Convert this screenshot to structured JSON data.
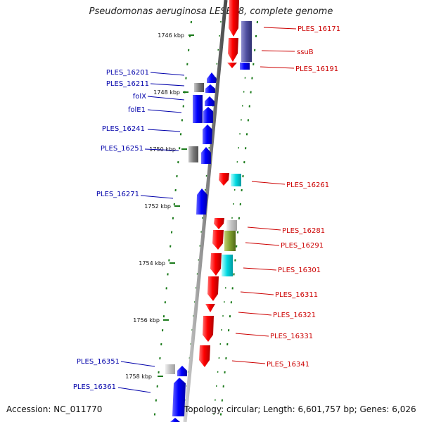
{
  "title": "Pseudomonas aeruginosa LESB58, complete genome",
  "footer": {
    "accession": "Accession: NC_011770",
    "topology": "Topology: circular; Length: 6,601,757 bp; Genes: 6,026"
  },
  "ticks": [
    "1746 kbp",
    "1748 kbp",
    "1750 kbp",
    "1752 kbp",
    "1754 kbp",
    "1756 kbp",
    "1758 kbp"
  ],
  "genes_left": [
    "PLES_16201",
    "PLES_16211",
    "folX",
    "folE1",
    "PLES_16241",
    "PLES_16251",
    "PLES_16271",
    "PLES_16351",
    "PLES_16361"
  ],
  "genes_right": [
    "PLES_16171",
    "ssuB",
    "PLES_16191",
    "PLES_16261",
    "PLES_16281",
    "PLES_16291",
    "PLES_16301",
    "PLES_16311",
    "PLES_16321",
    "PLES_16331",
    "PLES_16341"
  ],
  "colors": {
    "forward": "#ff0000",
    "reverse": "#0000ff",
    "rna": "#999999",
    "ssu_purple": "#5050a0",
    "cyan": "#00d8e0",
    "olive": "#80a030",
    "backbone": "#888888",
    "dots": "#1a7a1a",
    "label_left": "#0000aa",
    "label_right": "#cc0000"
  }
}
